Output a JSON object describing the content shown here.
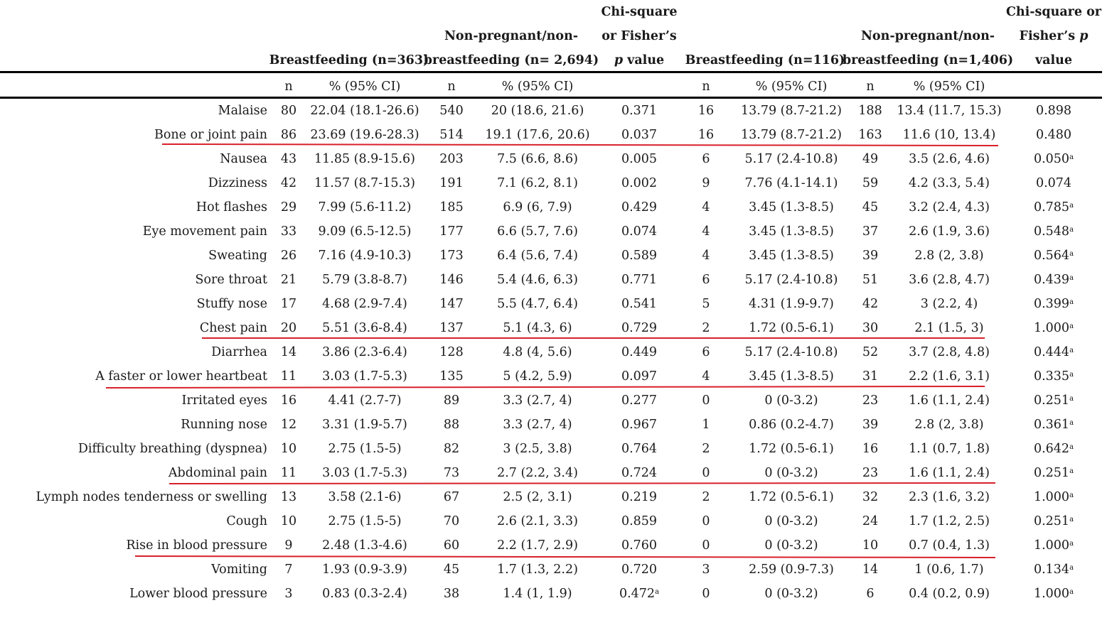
{
  "header": {
    "group1": "Breastfeeding (n=363)",
    "group2_line1": "Non-pregnant/non-",
    "group2_line2": "breastfeeding (n= 2,694)",
    "pval1_line1": "Chi-square",
    "pval1_line2": "or Fisher’s",
    "pval1_line3_italic": "p",
    "pval1_line3_rest": " value",
    "group3": "Breastfeeding (n=116)",
    "group4_line1": "Non-pregnant/non-",
    "group4_line2": "breastfeeding (n=1,406)",
    "pval2_line1": "Chi-square or",
    "pval2_line2_text": "Fisher’s ",
    "pval2_line2_italic": "p",
    "pval2_line3": "value"
  },
  "subheader": {
    "n": "n",
    "pct": "% (95% CI)"
  },
  "rows": [
    {
      "label": "Malaise",
      "n1": "80",
      "p1": "22.04 (18.1-26.6)",
      "n2": "540",
      "p2": "20 (18.6, 21.6)",
      "pv1": "0.371",
      "pv1_sup": "",
      "n3": "16",
      "p3": "13.79 (8.7-21.2)",
      "n4": "188",
      "p4": "13.4 (11.7, 15.3)",
      "pv2": "0.898",
      "pv2_sup": ""
    },
    {
      "label": "Bone or joint pain",
      "n1": "86",
      "p1": "23.69 (19.6-28.3)",
      "n2": "514",
      "p2": "19.1 (17.6, 20.6)",
      "pv1": "0.037",
      "pv1_sup": "",
      "n3": "16",
      "p3": "13.79 (8.7-21.2)",
      "n4": "163",
      "p4": "11.6 (10, 13.4)",
      "pv2": "0.480",
      "pv2_sup": ""
    },
    {
      "label": "Nausea",
      "n1": "43",
      "p1": "11.85 (8.9-15.6)",
      "n2": "203",
      "p2": "7.5 (6.6, 8.6)",
      "pv1": "0.005",
      "pv1_sup": "",
      "n3": "6",
      "p3": "5.17 (2.4-10.8)",
      "n4": "49",
      "p4": "3.5 (2.6, 4.6)",
      "pv2": "0.050",
      "pv2_sup": "a"
    },
    {
      "label": "Dizziness",
      "n1": "42",
      "p1": "11.57 (8.7-15.3)",
      "n2": "191",
      "p2": "7.1 (6.2, 8.1)",
      "pv1": "0.002",
      "pv1_sup": "",
      "n3": "9",
      "p3": "7.76 (4.1-14.1)",
      "n4": "59",
      "p4": "4.2 (3.3, 5.4)",
      "pv2": "0.074",
      "pv2_sup": ""
    },
    {
      "label": "Hot flashes",
      "n1": "29",
      "p1": "7.99 (5.6-11.2)",
      "n2": "185",
      "p2": "6.9 (6, 7.9)",
      "pv1": "0.429",
      "pv1_sup": "",
      "n3": "4",
      "p3": "3.45 (1.3-8.5)",
      "n4": "45",
      "p4": "3.2 (2.4, 4.3)",
      "pv2": "0.785",
      "pv2_sup": "a"
    },
    {
      "label": "Eye movement pain",
      "n1": "33",
      "p1": "9.09 (6.5-12.5)",
      "n2": "177",
      "p2": "6.6 (5.7, 7.6)",
      "pv1": "0.074",
      "pv1_sup": "",
      "n3": "4",
      "p3": "3.45 (1.3-8.5)",
      "n4": "37",
      "p4": "2.6 (1.9, 3.6)",
      "pv2": "0.548",
      "pv2_sup": "a"
    },
    {
      "label": "Sweating",
      "n1": "26",
      "p1": "7.16 (4.9-10.3)",
      "n2": "173",
      "p2": "6.4 (5.6, 7.4)",
      "pv1": "0.589",
      "pv1_sup": "",
      "n3": "4",
      "p3": "3.45 (1.3-8.5)",
      "n4": "39",
      "p4": "2.8 (2, 3.8)",
      "pv2": "0.564",
      "pv2_sup": "a"
    },
    {
      "label": "Sore throat",
      "n1": "21",
      "p1": "5.79 (3.8-8.7)",
      "n2": "146",
      "p2": "5.4 (4.6, 6.3)",
      "pv1": "0.771",
      "pv1_sup": "",
      "n3": "6",
      "p3": "5.17 (2.4-10.8)",
      "n4": "51",
      "p4": "3.6 (2.8, 4.7)",
      "pv2": "0.439",
      "pv2_sup": "a"
    },
    {
      "label": "Stuffy nose",
      "n1": "17",
      "p1": "4.68 (2.9-7.4)",
      "n2": "147",
      "p2": "5.5 (4.7, 6.4)",
      "pv1": "0.541",
      "pv1_sup": "",
      "n3": "5",
      "p3": "4.31 (1.9-9.7)",
      "n4": "42",
      "p4": "3 (2.2, 4)",
      "pv2": "0.399",
      "pv2_sup": "a"
    },
    {
      "label": "Chest pain",
      "n1": "20",
      "p1": "5.51 (3.6-8.4)",
      "n2": "137",
      "p2": "5.1 (4.3, 6)",
      "pv1": "0.729",
      "pv1_sup": "",
      "n3": "2",
      "p3": "1.72 (0.5-6.1)",
      "n4": "30",
      "p4": "2.1 (1.5, 3)",
      "pv2": "1.000",
      "pv2_sup": "a"
    },
    {
      "label": "Diarrhea",
      "n1": "14",
      "p1": "3.86 (2.3-6.4)",
      "n2": "128",
      "p2": "4.8 (4, 5.6)",
      "pv1": "0.449",
      "pv1_sup": "",
      "n3": "6",
      "p3": "5.17 (2.4-10.8)",
      "n4": "52",
      "p4": "3.7 (2.8, 4.8)",
      "pv2": "0.444",
      "pv2_sup": "a"
    },
    {
      "label": "A faster or lower heartbeat",
      "n1": "11",
      "p1": "3.03 (1.7-5.3)",
      "n2": "135",
      "p2": "5 (4.2, 5.9)",
      "pv1": "0.097",
      "pv1_sup": "",
      "n3": "4",
      "p3": "3.45 (1.3-8.5)",
      "n4": "31",
      "p4": "2.2 (1.6, 3.1)",
      "pv2": "0.335",
      "pv2_sup": "a"
    },
    {
      "label": "Irritated eyes",
      "n1": "16",
      "p1": "4.41 (2.7-7)",
      "n2": "89",
      "p2": "3.3 (2.7, 4)",
      "pv1": "0.277",
      "pv1_sup": "",
      "n3": "0",
      "p3": "0 (0-3.2)",
      "n4": "23",
      "p4": "1.6 (1.1, 2.4)",
      "pv2": "0.251",
      "pv2_sup": "a"
    },
    {
      "label": "Running nose",
      "n1": "12",
      "p1": "3.31 (1.9-5.7)",
      "n2": "88",
      "p2": "3.3 (2.7, 4)",
      "pv1": "0.967",
      "pv1_sup": "",
      "n3": "1",
      "p3": "0.86 (0.2-4.7)",
      "n4": "39",
      "p4": "2.8 (2, 3.8)",
      "pv2": "0.361",
      "pv2_sup": "a"
    },
    {
      "label": "Difficulty breathing (dyspnea)",
      "n1": "10",
      "p1": "2.75 (1.5-5)",
      "n2": "82",
      "p2": "3 (2.5, 3.8)",
      "pv1": "0.764",
      "pv1_sup": "",
      "n3": "2",
      "p3": "1.72 (0.5-6.1)",
      "n4": "16",
      "p4": "1.1 (0.7, 1.8)",
      "pv2": "0.642",
      "pv2_sup": "a"
    },
    {
      "label": "Abdominal pain",
      "n1": "11",
      "p1": "3.03 (1.7-5.3)",
      "n2": "73",
      "p2": "2.7 (2.2, 3.4)",
      "pv1": "0.724",
      "pv1_sup": "",
      "n3": "0",
      "p3": "0 (0-3.2)",
      "n4": "23",
      "p4": "1.6 (1.1, 2.4)",
      "pv2": "0.251",
      "pv2_sup": "a"
    },
    {
      "label": "Lymph nodes tenderness or swelling",
      "n1": "13",
      "p1": "3.58 (2.1-6)",
      "n2": "67",
      "p2": "2.5 (2, 3.1)",
      "pv1": "0.219",
      "pv1_sup": "",
      "n3": "2",
      "p3": "1.72 (0.5-6.1)",
      "n4": "32",
      "p4": "2.3 (1.6, 3.2)",
      "pv2": "1.000",
      "pv2_sup": "a"
    },
    {
      "label": "Cough",
      "n1": "10",
      "p1": "2.75 (1.5-5)",
      "n2": "70",
      "p2": "2.6 (2.1, 3.3)",
      "pv1": "0.859",
      "pv1_sup": "",
      "n3": "0",
      "p3": "0 (0-3.2)",
      "n4": "24",
      "p4": "1.7 (1.2, 2.5)",
      "pv2": "0.251",
      "pv2_sup": "a"
    },
    {
      "label": "Rise in blood pressure",
      "n1": "9",
      "p1": "2.48 (1.3-4.6)",
      "n2": "60",
      "p2": "2.2 (1.7, 2.9)",
      "pv1": "0.760",
      "pv1_sup": "",
      "n3": "0",
      "p3": "0 (0-3.2)",
      "n4": "10",
      "p4": "0.7 (0.4, 1.3)",
      "pv2": "1.000",
      "pv2_sup": "a"
    },
    {
      "label": "Vomiting",
      "n1": "7",
      "p1": "1.93 (0.9-3.9)",
      "n2": "45",
      "p2": "1.7 (1.3, 2.2)",
      "pv1": "0.720",
      "pv1_sup": "",
      "n3": "3",
      "p3": "2.59 (0.9-7.3)",
      "n4": "14",
      "p4": "1 (0.6, 1.7)",
      "pv2": "0.134",
      "pv2_sup": "a"
    },
    {
      "label": "Lower blood pressure",
      "n1": "3",
      "p1": "0.83 (0.3-2.4)",
      "n2": "38",
      "p2": "1.4 (1, 1.9)",
      "pv1": "0.472",
      "pv1_sup": "a",
      "n3": "0",
      "p3": "0 (0-3.2)",
      "n4": "6",
      "p4": "0.4 (0.2, 0.9)",
      "pv2": "1.000",
      "pv2_sup": "a"
    }
  ],
  "highlight_color": "#d8202b"
}
